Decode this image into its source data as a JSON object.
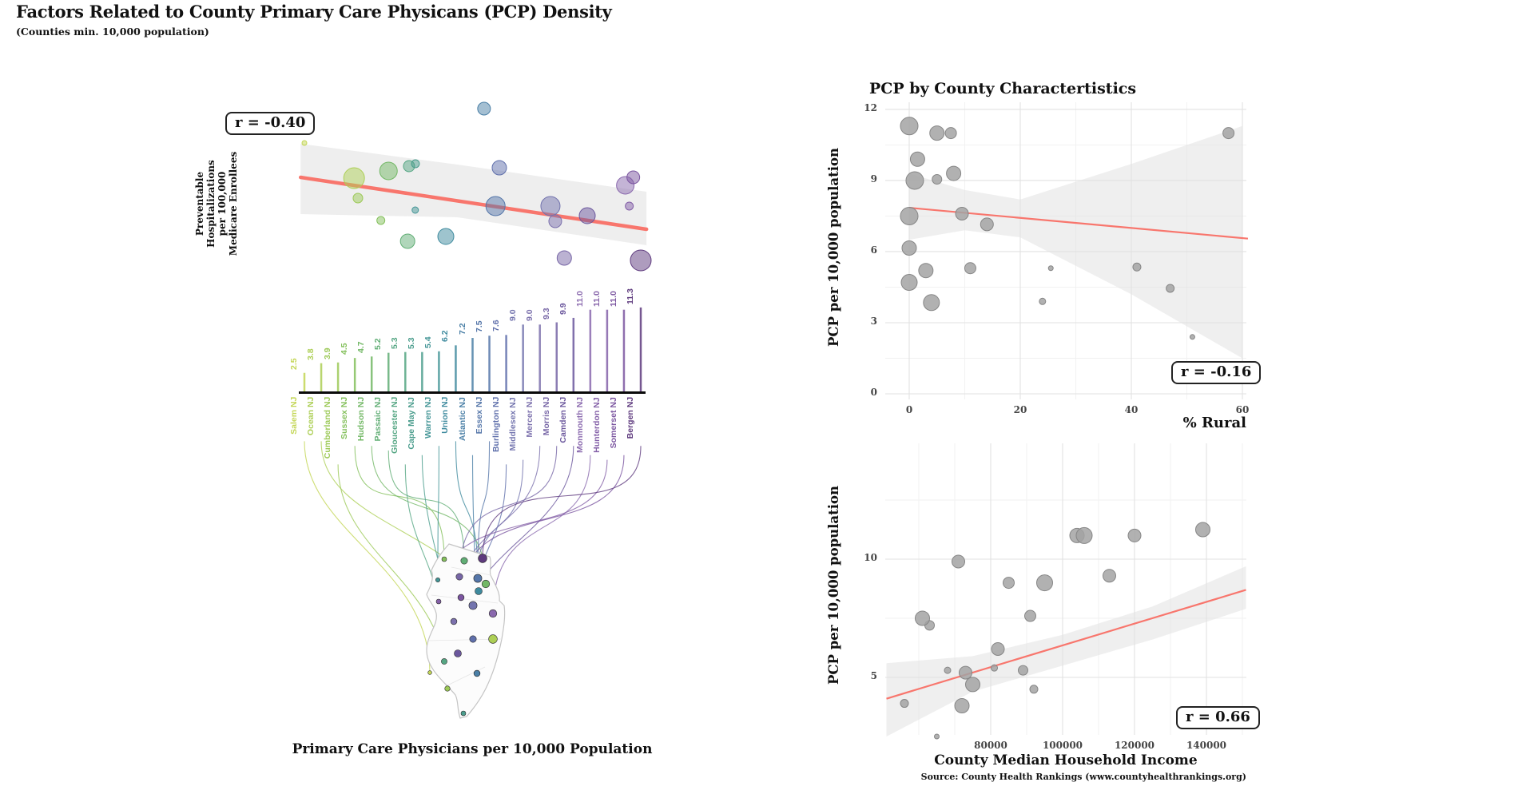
{
  "page": {
    "title": "Factors Related to County Primary Care Physicans (PCP) Density",
    "subtitle": "(Counties min. 10,000 population)",
    "source": "Source: County Health Rankings (www.countyhealthrankings.org)"
  },
  "chart_data": [
    {
      "id": "pcp-vs-preventable-hospitalizations",
      "type": "scatter",
      "r_label": "r = -0.40",
      "y_axis_label_lines": [
        "Preventable",
        "Hospitalizations",
        "per 100,000",
        "Medicare Enrollees"
      ],
      "xlabel": "Primary Care Physicians per 10,000 Population",
      "x_range": [
        2.5,
        11.3
      ],
      "trend_color": "#f8766d",
      "trend": [
        [
          2.4,
          222
        ],
        [
          11.45,
          287
        ]
      ],
      "band": [
        [
          2.4,
          180,
          268
        ],
        [
          6.5,
          206,
          272
        ],
        [
          11.45,
          240,
          307
        ]
      ],
      "counties": [
        {
          "name": "Salem NJ",
          "pcp": 2.5,
          "color": "#c3d655",
          "size": 3,
          "hosp_y": 179,
          "dx": 0,
          "map": [
            538,
            842
          ]
        },
        {
          "name": "Ocean NJ",
          "pcp": 3.8,
          "color": "#adcf56",
          "size": 13,
          "hosp_y": 223,
          "dx": 0,
          "map": [
            617,
            800
          ]
        },
        {
          "name": "Cumberland NJ",
          "pcp": 3.9,
          "color": "#9cc957",
          "size": 6,
          "hosp_y": 248,
          "dx": 0,
          "map": [
            560,
            862
          ]
        },
        {
          "name": "Sussex NJ",
          "pcp": 4.5,
          "color": "#84c05c",
          "size": 5,
          "hosp_y": 276,
          "dx": 0,
          "map": [
            556,
            700
          ]
        },
        {
          "name": "Hudson NJ",
          "pcp": 4.7,
          "color": "#73b866",
          "size": 11,
          "hosp_y": 214,
          "dx": 0,
          "map": [
            608,
            731
          ]
        },
        {
          "name": "Passaic NJ",
          "pcp": 5.2,
          "color": "#61ae75",
          "size": 9,
          "hosp_y": 302,
          "dx": 0,
          "map": [
            581,
            702
          ]
        },
        {
          "name": "Gloucester NJ",
          "pcp": 5.3,
          "color": "#55a683",
          "size": 7,
          "hosp_y": 208,
          "dx": -3,
          "map": [
            556,
            828
          ]
        },
        {
          "name": "Cape May NJ",
          "pcp": 5.3,
          "color": "#4b9d8d",
          "size": 5,
          "hosp_y": 205,
          "dx": 5,
          "map": [
            580,
            893
          ]
        },
        {
          "name": "Warren NJ",
          "pcp": 5.4,
          "color": "#439596",
          "size": 4,
          "hosp_y": 263,
          "dx": 0,
          "map": [
            548,
            726
          ]
        },
        {
          "name": "Union NJ",
          "pcp": 6.2,
          "color": "#3e8a9e",
          "size": 10,
          "hosp_y": 296,
          "dx": 0,
          "map": [
            599,
            740
          ]
        },
        {
          "name": "Atlantic NJ",
          "pcp": 7.2,
          "color": "#4a7fa6",
          "size": 8,
          "hosp_y": 136,
          "dx": 0,
          "map": [
            597,
            843
          ]
        },
        {
          "name": "Essex NJ",
          "pcp": 7.5,
          "color": "#5576a9",
          "size": 12,
          "hosp_y": 258,
          "dx": 0,
          "map": [
            598,
            724
          ]
        },
        {
          "name": "Burlington NJ",
          "pcp": 7.6,
          "color": "#5f6fab",
          "size": 9,
          "hosp_y": 210,
          "dx": 0,
          "map": [
            592,
            800
          ]
        },
        {
          "name": "Middlesex NJ",
          "pcp": 9.0,
          "color": "#7374ae",
          "size": 12,
          "hosp_y": 258,
          "dx": -3,
          "map": [
            592,
            758
          ]
        },
        {
          "name": "Mercer NJ",
          "pcp": 9.0,
          "color": "#7c71ad",
          "size": 8,
          "hosp_y": 277,
          "dx": 3,
          "map": [
            568,
            778
          ]
        },
        {
          "name": "Morris NJ",
          "pcp": 9.3,
          "color": "#7766a6",
          "size": 9,
          "hosp_y": 323,
          "dx": 0,
          "map": [
            575,
            722
          ]
        },
        {
          "name": "Camden NJ",
          "pcp": 9.9,
          "color": "#6b579d",
          "size": 10,
          "hosp_y": 270,
          "dx": 0,
          "map": [
            573,
            818
          ]
        },
        {
          "name": "Monmouth NJ",
          "pcp": 11.0,
          "color": "#8a69ae",
          "size": 11,
          "hosp_y": 232,
          "dx": -5,
          "map": [
            617,
            768
          ]
        },
        {
          "name": "Hunterdon NJ",
          "pcp": 11.0,
          "color": "#8460a8",
          "size": 5,
          "hosp_y": 258,
          "dx": 0,
          "map": [
            549,
            753
          ]
        },
        {
          "name": "Somerset NJ",
          "pcp": 11.0,
          "color": "#7b55a0",
          "size": 8,
          "hosp_y": 222,
          "dx": 5,
          "map": [
            577,
            748
          ]
        },
        {
          "name": "Bergen NJ",
          "pcp": 11.3,
          "color": "#5e3a7e",
          "size": 13,
          "hosp_y": 326,
          "dx": 0,
          "map": [
            604,
            699
          ]
        }
      ]
    },
    {
      "id": "pcp-by-percent-rural",
      "type": "scatter",
      "title": "PCP by County Charactertistics",
      "xlabel": "% Rural",
      "ylabel": "PCP per 10,000 population",
      "r_label": "r = -0.16",
      "x_ticks": [
        0,
        20,
        40,
        60
      ],
      "y_ticks": [
        12,
        9,
        6,
        3,
        0
      ],
      "xlim": [
        -4,
        61
      ],
      "ylim": [
        -0.3,
        12.4
      ],
      "grid": true,
      "legend": "none",
      "points": [
        [
          0,
          11.3,
          11
        ],
        [
          5,
          11.0,
          9
        ],
        [
          7.5,
          11.0,
          7
        ],
        [
          1.5,
          9.9,
          9
        ],
        [
          1,
          9.0,
          11
        ],
        [
          5,
          9.05,
          6
        ],
        [
          8,
          9.3,
          9
        ],
        [
          0,
          7.5,
          11
        ],
        [
          9.5,
          7.6,
          8
        ],
        [
          14,
          7.15,
          8
        ],
        [
          0,
          6.15,
          9
        ],
        [
          3,
          5.2,
          9
        ],
        [
          11,
          5.3,
          7
        ],
        [
          25.5,
          5.3,
          3
        ],
        [
          0,
          4.7,
          10
        ],
        [
          4,
          3.85,
          10
        ],
        [
          24,
          3.9,
          4
        ],
        [
          41,
          5.35,
          5
        ],
        [
          47,
          4.45,
          5
        ],
        [
          51,
          2.4,
          3
        ],
        [
          57.5,
          11.0,
          7
        ]
      ],
      "trend": [
        [
          0,
          7.85
        ],
        [
          61,
          6.55
        ]
      ],
      "band": [
        [
          0,
          9.3,
          6.5
        ],
        [
          10,
          8.6,
          6.9
        ],
        [
          20,
          8.2,
          6.6
        ],
        [
          40,
          9.7,
          4.2
        ],
        [
          60,
          11.3,
          1.5
        ]
      ]
    },
    {
      "id": "pcp-by-median-household-income",
      "type": "scatter",
      "xlabel": "County Median Household Income",
      "ylabel": "PCP per 10,000 population",
      "r_label": "r = 0.66",
      "x_ticks": [
        80000,
        100000,
        120000,
        140000
      ],
      "y_ticks": [
        10,
        5
      ],
      "xlim": [
        51000,
        151000
      ],
      "ylim": [
        1.5,
        14.9
      ],
      "grid": true,
      "legend": "none",
      "points": [
        [
          65000,
          2.5,
          3
        ],
        [
          72000,
          3.8,
          9
        ],
        [
          56000,
          3.9,
          5
        ],
        [
          92000,
          4.5,
          5
        ],
        [
          75000,
          4.7,
          9
        ],
        [
          73000,
          5.2,
          8
        ],
        [
          89000,
          5.3,
          6
        ],
        [
          68000,
          5.3,
          4
        ],
        [
          81000,
          5.4,
          4
        ],
        [
          82000,
          6.2,
          8
        ],
        [
          63000,
          7.2,
          6
        ],
        [
          61000,
          7.5,
          9
        ],
        [
          91000,
          7.6,
          7
        ],
        [
          95000,
          9.0,
          10
        ],
        [
          85000,
          9.0,
          7
        ],
        [
          113000,
          9.3,
          8
        ],
        [
          71000,
          9.9,
          8
        ],
        [
          104000,
          11.0,
          9
        ],
        [
          120000,
          11.0,
          8
        ],
        [
          106000,
          11.0,
          10
        ],
        [
          139000,
          11.25,
          9
        ]
      ],
      "trend": [
        [
          51000,
          4.1
        ],
        [
          151000,
          8.7
        ]
      ],
      "band": [
        [
          51000,
          5.6,
          2.5
        ],
        [
          75000,
          5.9,
          4.4
        ],
        [
          100000,
          6.8,
          5.5
        ],
        [
          125000,
          8.0,
          6.6
        ],
        [
          151000,
          9.7,
          7.9
        ]
      ]
    }
  ],
  "style": {
    "trend_color": "#f8766d",
    "band_color": "#e0e0e0",
    "point_gray": "#a3a3a3",
    "grid_major": "#e2e2e2",
    "grid_minor": "#f1f1f1"
  }
}
